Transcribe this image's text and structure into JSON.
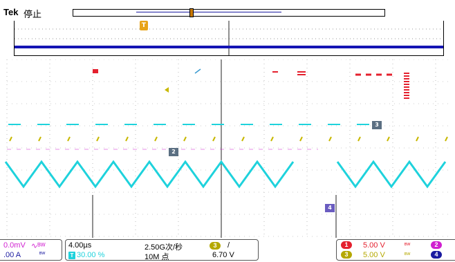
{
  "header": {
    "brand": "Tek",
    "status": "停止"
  },
  "trigger_marker": "T",
  "markers": {
    "ch2": "2",
    "ch3": "3",
    "ch3_label": "3",
    "ch4": "4"
  },
  "readouts": {
    "ch_left": {
      "volts_partial": "0.0mV",
      "amps_partial": ".00 A"
    },
    "timebase": {
      "horizontal_scale": "4.00µs",
      "trigger_position": "30.00 %",
      "sample_rate": "2.50G次/秒",
      "record_length": "10M 点",
      "trigger_source": "3",
      "trigger_slope": "/",
      "trigger_level": "6.70 V"
    },
    "channels": [
      {
        "id": "1",
        "scale": "5.00 V",
        "color": "#e4202e"
      },
      {
        "id": "2",
        "scale": "",
        "color": "#d020d0"
      },
      {
        "id": "3",
        "scale": "5.00 V",
        "color": "#b5a800"
      },
      {
        "id": "4",
        "scale": "",
        "color": "#1a1aa0"
      }
    ]
  },
  "colors": {
    "ch1": "#e4202e",
    "ch2": "#d020d0",
    "ch3": "#c8b800",
    "ch4": "#1414b4",
    "cyan": "#1ed2dc",
    "trigger": "#e8a317"
  }
}
